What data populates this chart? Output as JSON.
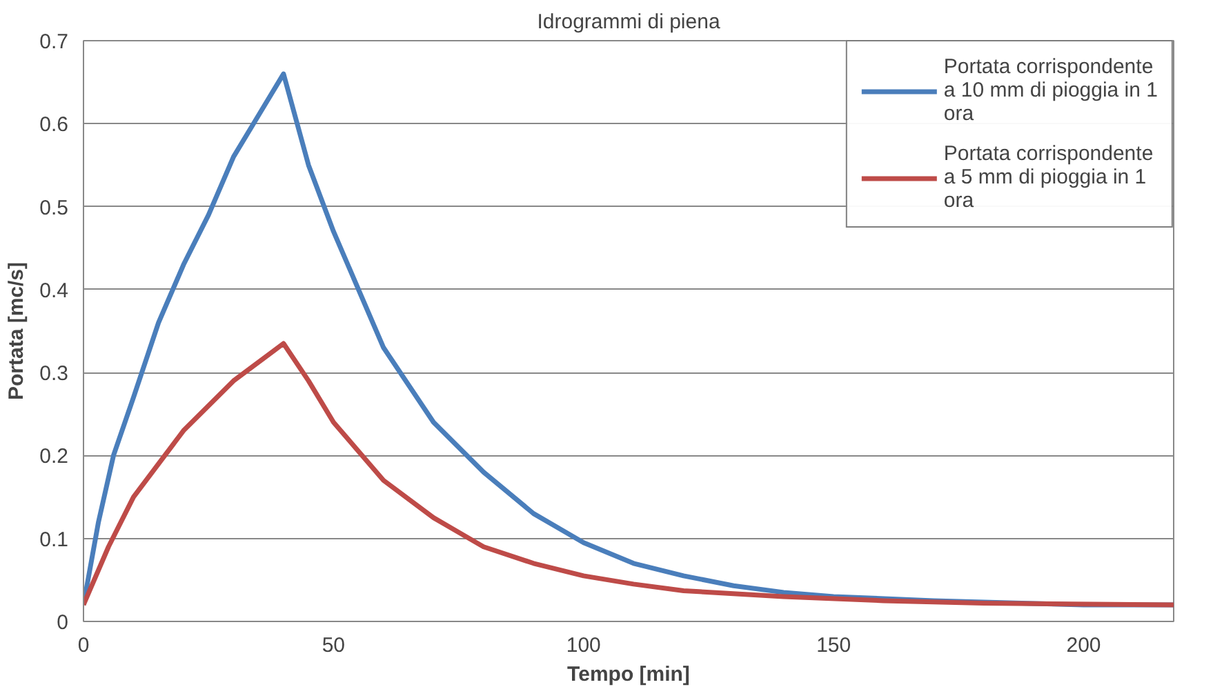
{
  "chart_data": {
    "type": "line",
    "title": "Idrogrammi di piena",
    "xlabel": "Tempo [min]",
    "ylabel": "Portata [mc/s]",
    "xlim": [
      0,
      218
    ],
    "xticks": [
      0,
      50,
      100,
      150,
      200
    ],
    "ylim": [
      0,
      0.7
    ],
    "yticks": [
      0,
      0.1,
      0.2,
      0.3,
      0.4,
      0.5,
      0.6,
      0.7
    ],
    "grid": "y",
    "legend": "top right",
    "series": [
      {
        "name": "Portata corrispondente a 10 mm di pioggia in 1 ora",
        "color": "#4a7ebb",
        "x": [
          0,
          3,
          6,
          10,
          15,
          20,
          25,
          30,
          35,
          40,
          45,
          50,
          60,
          70,
          80,
          90,
          100,
          110,
          120,
          130,
          140,
          150,
          170,
          200,
          218
        ],
        "values": [
          0.02,
          0.12,
          0.2,
          0.27,
          0.36,
          0.43,
          0.49,
          0.56,
          0.61,
          0.66,
          0.55,
          0.47,
          0.33,
          0.24,
          0.18,
          0.13,
          0.095,
          0.07,
          0.055,
          0.043,
          0.035,
          0.03,
          0.025,
          0.02,
          0.02
        ]
      },
      {
        "name": "Portata corrispondente a 5 mm di pioggia in 1 ora",
        "color": "#be4b48",
        "x": [
          0,
          5,
          10,
          20,
          30,
          40,
          45,
          50,
          60,
          70,
          80,
          90,
          100,
          110,
          120,
          140,
          160,
          180,
          218
        ],
        "values": [
          0.02,
          0.09,
          0.15,
          0.23,
          0.29,
          0.335,
          0.29,
          0.24,
          0.17,
          0.125,
          0.09,
          0.07,
          0.055,
          0.045,
          0.037,
          0.03,
          0.025,
          0.022,
          0.02
        ]
      }
    ]
  }
}
